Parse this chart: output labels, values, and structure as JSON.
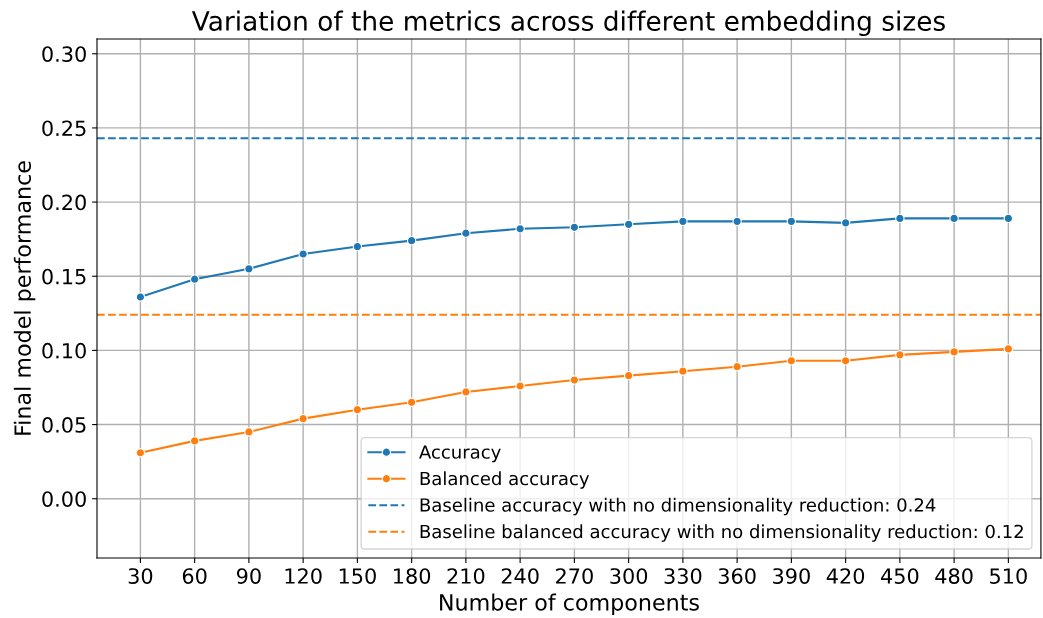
{
  "chart_data": {
    "type": "line",
    "title": "Variation of the metrics across different embedding sizes",
    "xlabel": "Number of components",
    "ylabel": "Final model performance",
    "x": [
      30,
      60,
      90,
      120,
      150,
      180,
      210,
      240,
      270,
      300,
      330,
      360,
      390,
      420,
      450,
      480,
      510
    ],
    "series": [
      {
        "name": "Accuracy",
        "color": "#1f77b4",
        "values": [
          0.136,
          0.148,
          0.155,
          0.165,
          0.17,
          0.174,
          0.179,
          0.182,
          0.183,
          0.185,
          0.187,
          0.187,
          0.187,
          0.186,
          0.189,
          0.189,
          0.189
        ]
      },
      {
        "name": "Balanced accuracy",
        "color": "#ff7f0e",
        "values": [
          0.031,
          0.039,
          0.045,
          0.054,
          0.06,
          0.065,
          0.072,
          0.076,
          0.08,
          0.083,
          0.086,
          0.089,
          0.093,
          0.093,
          0.097,
          0.099,
          0.101
        ]
      }
    ],
    "ref_lines": [
      {
        "axis": "y",
        "value": 0.243,
        "label": "Baseline accuracy with no dimensionality reduction: 0.24",
        "color": "#1f77b4",
        "line_style": "dashed"
      },
      {
        "axis": "y",
        "value": 0.124,
        "label": "Baseline balanced accuracy with no dimensionality reduction: 0.12",
        "color": "#ff7f0e",
        "line_style": "dashed"
      }
    ],
    "xlim": [
      6,
      528
    ],
    "xticks": [
      30,
      60,
      90,
      120,
      150,
      180,
      210,
      240,
      270,
      300,
      330,
      360,
      390,
      420,
      450,
      480,
      510
    ],
    "ylim": [
      -0.04,
      0.31
    ],
    "yticks": [
      {
        "value": 0,
        "label": "0.00"
      },
      {
        "value": 0.05,
        "label": "0.05"
      },
      {
        "value": 0.1,
        "label": "0.10"
      },
      {
        "value": 0.15,
        "label": "0.15"
      },
      {
        "value": 0.2,
        "label": "0.20"
      },
      {
        "value": 0.25,
        "label": "0.25"
      },
      {
        "value": 0.3,
        "label": "0.30"
      }
    ],
    "grid": true,
    "legend": "bottom right",
    "marker": "circle",
    "line_style": "solid"
  }
}
